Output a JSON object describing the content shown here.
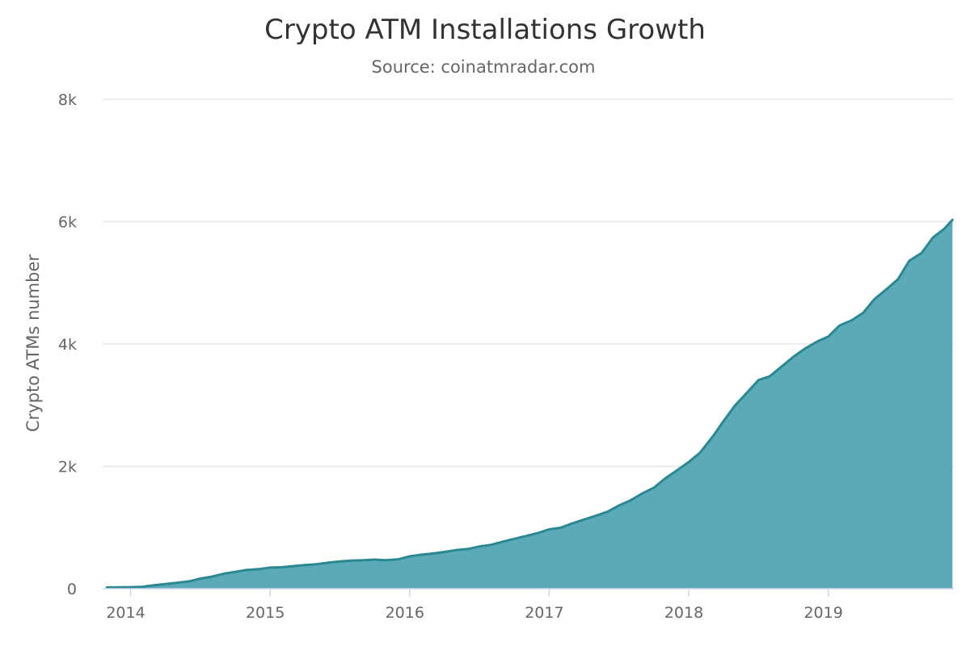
{
  "chart_data": {
    "type": "area",
    "title": "Crypto ATM Installations Growth",
    "subtitle": "Source: coinatmradar.com",
    "ylabel": "Crypto ATMs number",
    "xlabel": "",
    "ylim": [
      0,
      8000
    ],
    "xlim": [
      2013.8,
      2019.9
    ],
    "grid": true,
    "legend": "none",
    "color": "#5aaab8",
    "line_color": "#2b8890",
    "y_ticks": [
      {
        "value": 0,
        "label": "0"
      },
      {
        "value": 2000,
        "label": "2k"
      },
      {
        "value": 4000,
        "label": "4k"
      },
      {
        "value": 6000,
        "label": "6k"
      },
      {
        "value": 8000,
        "label": "8k"
      }
    ],
    "x_ticks": [
      {
        "value": 2014,
        "label": "2014"
      },
      {
        "value": 2015,
        "label": "2015"
      },
      {
        "value": 2016,
        "label": "2016"
      },
      {
        "value": 2017,
        "label": "2017"
      },
      {
        "value": 2018,
        "label": "2018"
      },
      {
        "value": 2019,
        "label": "2019"
      }
    ],
    "series": [
      {
        "x": [
          2013.83,
          2014.0,
          2014.08,
          2014.17,
          2014.25,
          2014.33,
          2014.42,
          2014.5,
          2014.58,
          2014.67,
          2014.75,
          2014.83,
          2014.92,
          2015.0,
          2015.08,
          2015.17,
          2015.25,
          2015.33,
          2015.42,
          2015.5,
          2015.58,
          2015.67,
          2015.75,
          2015.83,
          2015.92,
          2016.0,
          2016.08,
          2016.17,
          2016.25,
          2016.33,
          2016.42,
          2016.5,
          2016.58,
          2016.67,
          2016.75,
          2016.83,
          2016.92,
          2017.0,
          2017.08,
          2017.17,
          2017.25,
          2017.33,
          2017.42,
          2017.5,
          2017.58,
          2017.67,
          2017.75,
          2017.83,
          2017.92,
          2018.0,
          2018.08,
          2018.17,
          2018.25,
          2018.33,
          2018.42,
          2018.5,
          2018.58,
          2018.67,
          2018.75,
          2018.83,
          2018.92,
          2019.0,
          2019.08,
          2019.17,
          2019.25,
          2019.33,
          2019.42,
          2019.5,
          2019.58,
          2019.67,
          2019.75,
          2019.83,
          2019.89
        ],
        "values": [
          20,
          25,
          30,
          55,
          75,
          95,
          120,
          165,
          195,
          245,
          275,
          305,
          320,
          345,
          350,
          370,
          385,
          400,
          425,
          445,
          460,
          465,
          475,
          465,
          480,
          530,
          555,
          575,
          600,
          630,
          650,
          690,
          715,
          770,
          815,
          860,
          910,
          970,
          995,
          1070,
          1130,
          1190,
          1260,
          1360,
          1440,
          1560,
          1650,
          1800,
          1940,
          2070,
          2220,
          2480,
          2740,
          2990,
          3210,
          3410,
          3470,
          3640,
          3790,
          3920,
          4040,
          4120,
          4300,
          4390,
          4510,
          4730,
          4900,
          5060,
          5360,
          5490,
          5740,
          5880,
          6030
        ]
      }
    ]
  }
}
